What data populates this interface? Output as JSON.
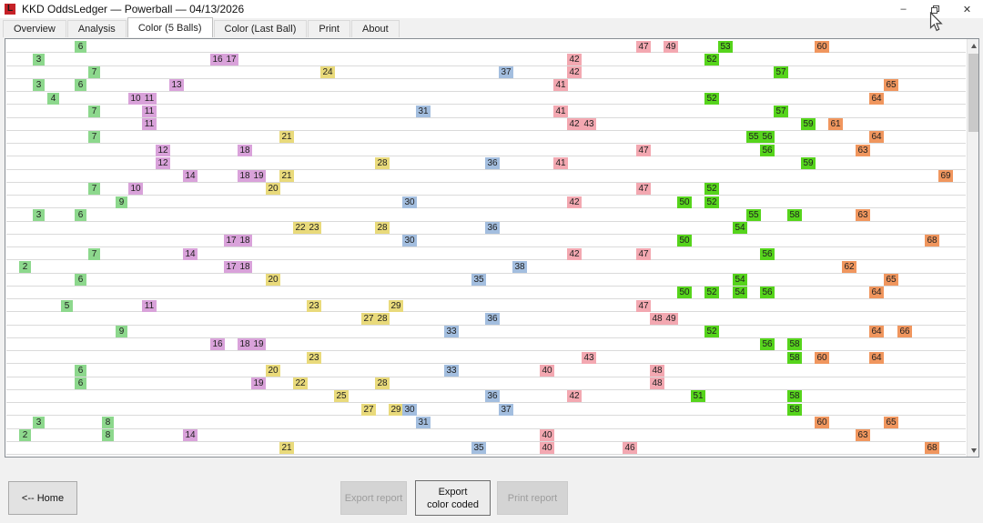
{
  "window": {
    "icon_letter": "L",
    "title": "KKD OddsLedger — Powerball — 04/13/2026",
    "minimize_glyph": "–",
    "close_glyph": "✕"
  },
  "tabs": [
    {
      "label": "Overview",
      "active": false
    },
    {
      "label": "Analysis",
      "active": false
    },
    {
      "label": "Color (5 Balls)",
      "active": true
    },
    {
      "label": "Color (Last Ball)",
      "active": false
    },
    {
      "label": "Print",
      "active": false
    },
    {
      "label": "About",
      "active": false
    }
  ],
  "grid": {
    "ball_min": 1,
    "ball_max": 69,
    "decade_colors": [
      "#8dd88d",
      "#d9a2da",
      "#e9da7b",
      "#a3bedf",
      "#f3a8b1",
      "#56d41c",
      "#f0965e"
    ],
    "rows": [
      [
        6,
        47,
        49,
        53,
        60
      ],
      [
        3,
        16,
        17,
        42,
        52
      ],
      [
        7,
        24,
        37,
        42,
        57
      ],
      [
        3,
        6,
        13,
        41,
        65
      ],
      [
        4,
        10,
        11,
        52,
        64
      ],
      [
        7,
        11,
        31,
        41,
        57
      ],
      [
        11,
        42,
        43,
        59,
        61
      ],
      [
        7,
        21,
        55,
        56,
        64
      ],
      [
        12,
        18,
        47,
        56,
        63
      ],
      [
        12,
        28,
        36,
        41,
        59
      ],
      [
        14,
        18,
        19,
        21,
        69
      ],
      [
        7,
        10,
        20,
        47,
        52
      ],
      [
        9,
        30,
        42,
        50,
        52
      ],
      [
        3,
        6,
        55,
        58,
        63
      ],
      [
        22,
        23,
        28,
        36,
        54
      ],
      [
        17,
        18,
        30,
        50,
        68
      ],
      [
        7,
        14,
        42,
        47,
        56
      ],
      [
        2,
        17,
        18,
        38,
        62
      ],
      [
        6,
        20,
        35,
        54,
        65
      ],
      [
        50,
        52,
        54,
        56,
        64
      ],
      [
        5,
        11,
        23,
        29,
        47
      ],
      [
        27,
        28,
        36,
        48,
        49
      ],
      [
        9,
        33,
        52,
        64,
        66
      ],
      [
        16,
        18,
        19,
        56,
        58
      ],
      [
        23,
        43,
        58,
        60,
        64
      ],
      [
        6,
        20,
        33,
        40,
        48
      ],
      [
        6,
        19,
        22,
        28,
        48
      ],
      [
        25,
        36,
        42,
        51,
        58
      ],
      [
        27,
        29,
        30,
        37,
        58
      ],
      [
        3,
        8,
        31,
        60,
        65
      ],
      [
        2,
        8,
        14,
        40,
        63
      ],
      [
        21,
        35,
        40,
        46,
        68
      ]
    ]
  },
  "footer": {
    "home_label": "<-- Home",
    "export_report_label": "Export report",
    "export_color_line1": "Export",
    "export_color_line2": "color coded",
    "print_report_label": "Print report"
  }
}
